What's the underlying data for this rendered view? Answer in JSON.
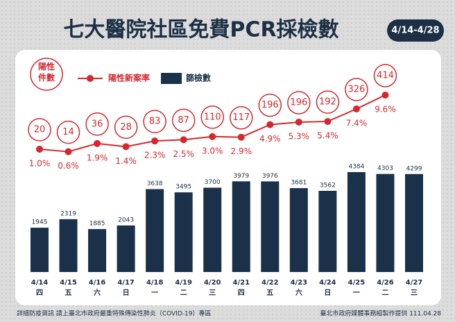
{
  "title": "七大醫院社區免費PCR採檢數",
  "date_range": "4/14-4/28",
  "chart_data": {
    "type": "bar_line",
    "categories": [
      "4/14",
      "4/15",
      "4/16",
      "4/17",
      "4/18",
      "4/19",
      "4/20",
      "4/21",
      "4/22",
      "4/23",
      "4/24",
      "4/25",
      "4/26",
      "4/27"
    ],
    "weekdays": [
      "四",
      "五",
      "六",
      "日",
      "一",
      "二",
      "三",
      "四",
      "五",
      "六",
      "日",
      "一",
      "二",
      "三"
    ],
    "series": [
      {
        "name": "篩檢數",
        "color": "#1b3049",
        "values": [
          1945,
          2319,
          1885,
          2043,
          3638,
          3495,
          3700,
          3979,
          3976,
          3681,
          3562,
          4384,
          4303,
          4299
        ]
      },
      {
        "name": "陽性新案率",
        "color": "#d7262c",
        "values": [
          1.0,
          0.6,
          1.9,
          1.4,
          2.3,
          2.5,
          3.0,
          2.9,
          4.9,
          5.3,
          5.4,
          7.4,
          9.6,
          null
        ],
        "value_labels": [
          "1.0%",
          "0.6%",
          "1.9%",
          "1.4%",
          "2.3%",
          "2.5%",
          "3.0%",
          "2.9%",
          "4.9%",
          "5.3%",
          "5.4%",
          "7.4%",
          "9.6%",
          null
        ]
      },
      {
        "name": "陽性件數",
        "color": "#d7262c",
        "values": [
          20,
          14,
          36,
          28,
          83,
          87,
          110,
          117,
          196,
          196,
          192,
          326,
          414,
          null
        ]
      }
    ]
  },
  "footer": {
    "left": "詳細防疫資訊 請上臺北市政府嚴重特殊傳染性肺炎（COVID-19）專區",
    "right": "臺北市政府媒體事務組製作提供 111.04.28"
  }
}
